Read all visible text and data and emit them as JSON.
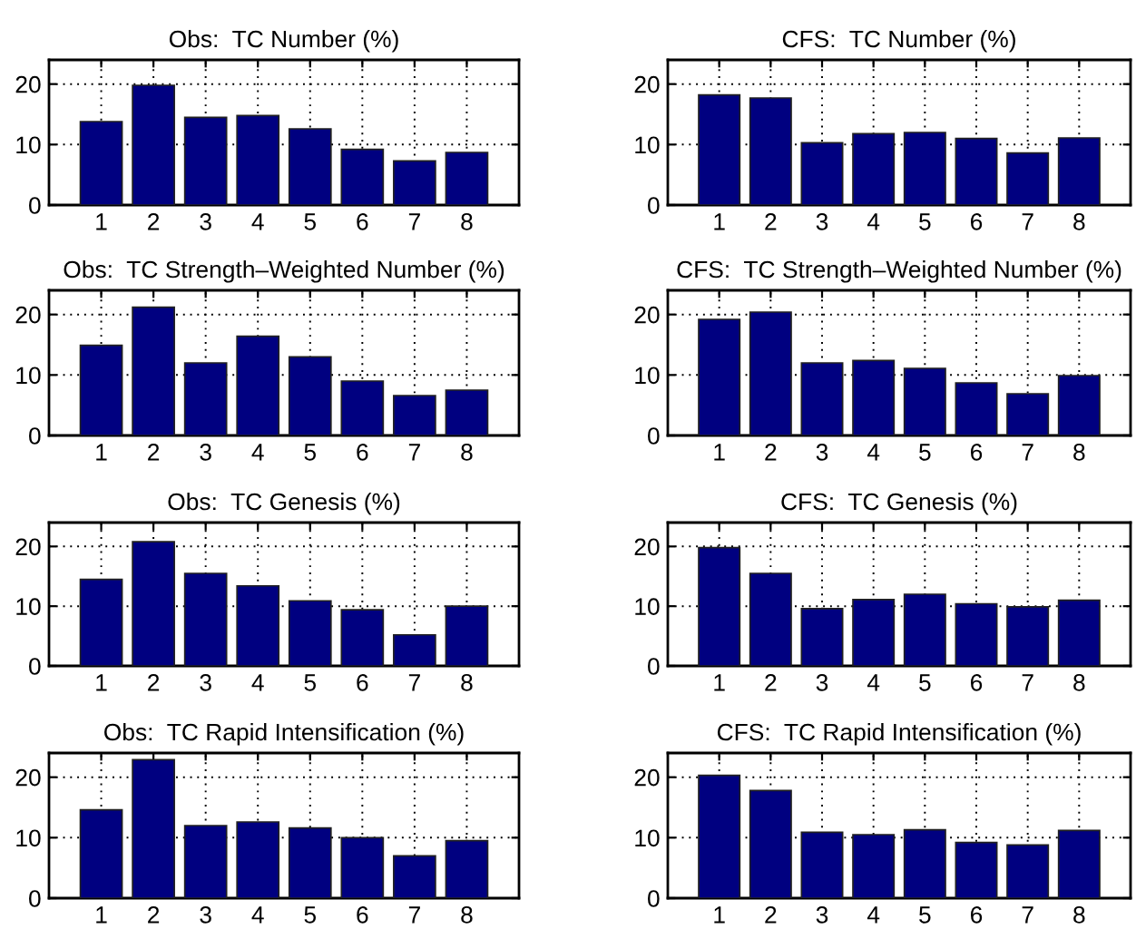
{
  "chart_data": [
    {
      "type": "bar",
      "title": "Obs:  TC Number (%)",
      "categories": [
        "1",
        "2",
        "3",
        "4",
        "5",
        "6",
        "7",
        "8"
      ],
      "values": [
        13.8,
        19.8,
        14.5,
        14.8,
        12.6,
        9.2,
        7.3,
        8.7
      ],
      "color": "#000080",
      "ylim": [
        0,
        24
      ],
      "yticks": [
        0,
        10,
        20
      ],
      "grid": true
    },
    {
      "type": "bar",
      "title": "CFS:  TC Number (%)",
      "categories": [
        "1",
        "2",
        "3",
        "4",
        "5",
        "6",
        "7",
        "8"
      ],
      "values": [
        18.2,
        17.7,
        10.3,
        11.8,
        12.0,
        11.0,
        8.6,
        11.1
      ],
      "color": "#000080",
      "ylim": [
        0,
        24
      ],
      "yticks": [
        0,
        10,
        20
      ],
      "grid": true
    },
    {
      "type": "bar",
      "title": "Obs:  TC Strength–Weighted Number (%)",
      "categories": [
        "1",
        "2",
        "3",
        "4",
        "5",
        "6",
        "7",
        "8"
      ],
      "values": [
        14.9,
        21.2,
        12.0,
        16.4,
        13.0,
        9.0,
        6.6,
        7.5
      ],
      "color": "#000080",
      "ylim": [
        0,
        24
      ],
      "yticks": [
        0,
        10,
        20
      ],
      "grid": true
    },
    {
      "type": "bar",
      "title": "CFS:  TC Strength–Weighted Number (%)",
      "categories": [
        "1",
        "2",
        "3",
        "4",
        "5",
        "6",
        "7",
        "8"
      ],
      "values": [
        19.2,
        20.4,
        12.0,
        12.4,
        11.1,
        8.7,
        6.9,
        9.9
      ],
      "color": "#000080",
      "ylim": [
        0,
        24
      ],
      "yticks": [
        0,
        10,
        20
      ],
      "grid": true
    },
    {
      "type": "bar",
      "title": "Obs:  TC Genesis (%)",
      "categories": [
        "1",
        "2",
        "3",
        "4",
        "5",
        "6",
        "7",
        "8"
      ],
      "values": [
        14.5,
        20.8,
        15.5,
        13.4,
        10.9,
        9.4,
        5.2,
        10.0
      ],
      "color": "#000080",
      "ylim": [
        0,
        24
      ],
      "yticks": [
        0,
        10,
        20
      ],
      "grid": true
    },
    {
      "type": "bar",
      "title": "CFS:  TC Genesis (%)",
      "categories": [
        "1",
        "2",
        "3",
        "4",
        "5",
        "6",
        "7",
        "8"
      ],
      "values": [
        19.8,
        15.5,
        9.6,
        11.1,
        12.0,
        10.4,
        9.9,
        11.0
      ],
      "color": "#000080",
      "ylim": [
        0,
        24
      ],
      "yticks": [
        0,
        10,
        20
      ],
      "grid": true
    },
    {
      "type": "bar",
      "title": "Obs:  TC Rapid Intensification (%)",
      "categories": [
        "1",
        "2",
        "3",
        "4",
        "5",
        "6",
        "7",
        "8"
      ],
      "values": [
        14.6,
        22.9,
        12.0,
        12.6,
        11.6,
        10.0,
        7.0,
        9.5
      ],
      "color": "#000080",
      "ylim": [
        0,
        24
      ],
      "yticks": [
        0,
        10,
        20
      ],
      "grid": true
    },
    {
      "type": "bar",
      "title": "CFS:  TC Rapid Intensification (%)",
      "categories": [
        "1",
        "2",
        "3",
        "4",
        "5",
        "6",
        "7",
        "8"
      ],
      "values": [
        20.3,
        17.8,
        10.9,
        10.5,
        11.3,
        9.2,
        8.8,
        11.2
      ],
      "color": "#000080",
      "ylim": [
        0,
        24
      ],
      "yticks": [
        0,
        10,
        20
      ],
      "grid": true
    }
  ]
}
